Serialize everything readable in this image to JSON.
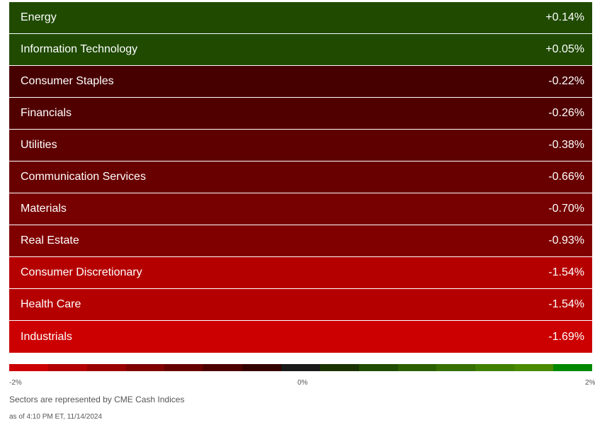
{
  "chart_data": {
    "type": "bar",
    "categories": [
      "Energy",
      "Information Technology",
      "Consumer Staples",
      "Financials",
      "Utilities",
      "Communication Services",
      "Materials",
      "Real Estate",
      "Consumer Discretionary",
      "Health Care",
      "Industrials"
    ],
    "values": [
      0.14,
      0.05,
      -0.22,
      -0.26,
      -0.38,
      -0.66,
      -0.7,
      -0.93,
      -1.54,
      -1.54,
      -1.69
    ],
    "labels": [
      "+0.14%",
      "+0.05%",
      "-0.22%",
      "-0.26%",
      "-0.38%",
      "-0.66%",
      "-0.70%",
      "-0.93%",
      "-1.54%",
      "-1.54%",
      "-1.69%"
    ],
    "row_colors": [
      "#1f4a00",
      "#1f4a00",
      "#470000",
      "#510000",
      "#5e0000",
      "#690000",
      "#770000",
      "#800000",
      "#b50000",
      "#b50000",
      "#cc0000"
    ],
    "color_scale": {
      "min_label": "-2%",
      "mid_label": "0%",
      "max_label": "2%",
      "colors": [
        "#cc0000",
        "#b30000",
        "#990000",
        "#800000",
        "#660000",
        "#4d0000",
        "#330000",
        "#1a1a1a",
        "#1a3300",
        "#204d00",
        "#2b6000",
        "#357000",
        "#408000",
        "#4a8a00",
        "#008800"
      ]
    }
  },
  "footer": {
    "note": "Sectors are represented by CME Cash Indices",
    "timestamp": "as of 4:10 PM ET, 11/14/2024"
  }
}
